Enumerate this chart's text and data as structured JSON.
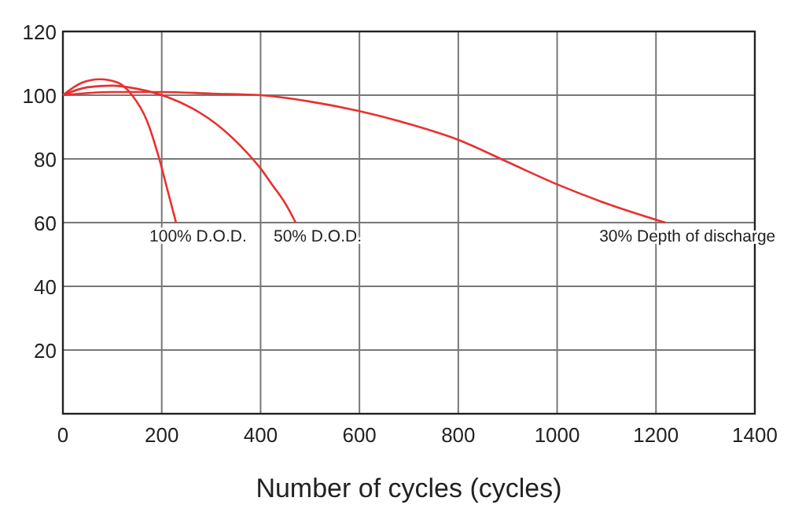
{
  "chart_data": {
    "type": "line",
    "xlabel": "Number of cycles (cycles)",
    "xlim": [
      0,
      1400
    ],
    "xticks": [
      0,
      200,
      400,
      600,
      800,
      1000,
      1200,
      1400
    ],
    "ylim": [
      0,
      120
    ],
    "yticks": [
      {
        "value": 0,
        "label": null
      },
      20,
      40,
      60,
      80,
      100,
      120
    ],
    "grid": true,
    "series": [
      {
        "color": "#e8312f",
        "x": [
          0,
          40,
          75,
          110,
          140,
          170,
          195,
          212,
          229
        ],
        "values": [
          100,
          104,
          105,
          104,
          100,
          92,
          80,
          70,
          60
        ]
      },
      {
        "color": "#e8312f",
        "x": [
          0,
          50,
          100,
          150,
          213,
          260,
          310,
          360,
          400,
          423,
          450,
          471
        ],
        "values": [
          100,
          102.5,
          103,
          102,
          99.3,
          96,
          91,
          84,
          77,
          72,
          66,
          60
        ]
      },
      {
        "color": "#e8312f",
        "x": [
          0,
          100,
          200,
          300,
          400,
          500,
          600,
          700,
          800,
          900,
          1000,
          1100,
          1219
        ],
        "values": [
          100,
          101,
          101,
          100.5,
          100,
          98,
          95,
          91,
          86,
          79,
          72,
          66,
          60
        ]
      }
    ],
    "annotations": [
      {
        "text": "100% D.O.D.",
        "x": 229,
        "y": 60
      },
      {
        "text": "50% D.O.D.",
        "x": 471,
        "y": 60
      },
      {
        "text": "30% Depth of discharge",
        "x": 1219,
        "y": 60
      }
    ]
  }
}
